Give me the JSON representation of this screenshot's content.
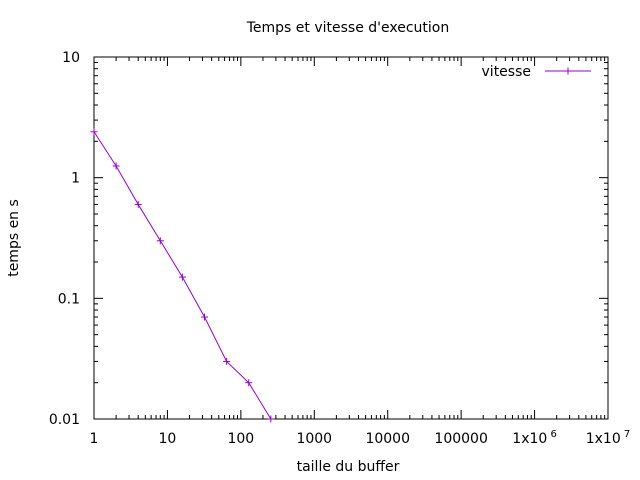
{
  "chart_data": {
    "type": "line",
    "title": "Temps et vitesse d'execution",
    "xlabel": "taille du buffer",
    "ylabel": "temps en s",
    "xscale": "log",
    "yscale": "log",
    "xlim": [
      1,
      10000000
    ],
    "ylim": [
      0.01,
      10
    ],
    "grid": false,
    "legend_position": "top-right",
    "x_ticks": [
      {
        "value": 1,
        "label": "1"
      },
      {
        "value": 10,
        "label": "10"
      },
      {
        "value": 100,
        "label": "100"
      },
      {
        "value": 1000,
        "label": "1000"
      },
      {
        "value": 10000,
        "label": "10000"
      },
      {
        "value": 100000,
        "label": "100000"
      },
      {
        "value": 1000000,
        "label": "1x10",
        "sup": "6"
      },
      {
        "value": 10000000,
        "label": "1x10",
        "sup": "7"
      }
    ],
    "y_ticks": [
      {
        "value": 0.01,
        "label": "0.01"
      },
      {
        "value": 0.1,
        "label": "0.1"
      },
      {
        "value": 1,
        "label": "1"
      },
      {
        "value": 10,
        "label": "10"
      }
    ],
    "series": [
      {
        "name": "vitesse",
        "color": "#9400d3",
        "x": [
          1,
          2,
          4,
          8,
          16,
          32,
          64,
          128,
          256
        ],
        "y": [
          2.4,
          1.25,
          0.6,
          0.3,
          0.15,
          0.07,
          0.03,
          0.02,
          0.01
        ]
      }
    ]
  }
}
